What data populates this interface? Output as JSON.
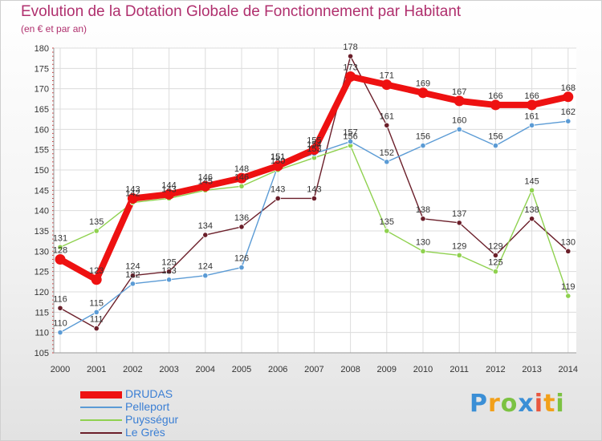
{
  "title": "Evolution de la Dotation Globale de Fonctionnement par Habitant",
  "subtitle": "(en € et par an)",
  "brand": {
    "letters": [
      {
        "char": "P",
        "color": "#3b8fd6"
      },
      {
        "char": "r",
        "color": "#f2a01a"
      },
      {
        "char": "o",
        "color": "#7cc242"
      },
      {
        "char": "x",
        "color": "#3b8fd6"
      },
      {
        "char": "i",
        "color": "#e9573f"
      },
      {
        "char": "t",
        "color": "#f2a01a"
      },
      {
        "char": "i",
        "color": "#7cc242"
      }
    ]
  },
  "chart_data": {
    "type": "line",
    "x": [
      "2000",
      "2001",
      "2002",
      "2003",
      "2004",
      "2005",
      "2006",
      "2007",
      "2008",
      "2009",
      "2010",
      "2011",
      "2012",
      "2013",
      "2014"
    ],
    "ylim": [
      105,
      180
    ],
    "yticks": [
      105,
      110,
      115,
      120,
      125,
      130,
      135,
      140,
      145,
      150,
      155,
      160,
      165,
      170,
      175,
      180
    ],
    "grid": true,
    "legend_position": "bottom-left",
    "series": [
      {
        "name": "Le Grès",
        "color": "#6b1f2a",
        "values": [
          116,
          111,
          124,
          125,
          134,
          136,
          143,
          143,
          178,
          161,
          138,
          137,
          129,
          138,
          130
        ],
        "labels": [
          "116",
          "111",
          "124",
          "125",
          "134",
          "136",
          "143",
          "143",
          "178",
          "161",
          "138",
          "137",
          "129",
          "138",
          "130"
        ]
      },
      {
        "name": "Puysségur",
        "color": "#8fd14f",
        "values": [
          131,
          135,
          142,
          143,
          145,
          146,
          150,
          153,
          156,
          135,
          130,
          129,
          125,
          145,
          119
        ],
        "labels": [
          "131",
          "135",
          "142",
          "143",
          "145",
          "146",
          "150",
          "153",
          "156",
          "135",
          "130",
          "129",
          "125",
          "145",
          "119"
        ]
      },
      {
        "name": "Pelleport",
        "color": "#5b9bd5",
        "values": [
          110,
          115,
          122,
          123,
          124,
          126,
          151,
          154,
          157,
          152,
          156,
          160,
          156,
          161,
          162
        ],
        "labels": [
          "110",
          "115",
          "122",
          "123",
          "124",
          "126",
          "151",
          "154",
          "157",
          "152",
          "156",
          "160",
          "156",
          "161",
          "162"
        ]
      },
      {
        "name": "DRUDAS",
        "color": "#ee1111",
        "values": [
          128,
          123,
          143,
          144,
          146,
          148,
          151,
          155,
          173,
          171,
          169,
          167,
          166,
          166,
          168
        ],
        "labels": [
          "128",
          "123",
          "143",
          "144",
          "146",
          "148",
          "151",
          "155",
          "173",
          "171",
          "169",
          "167",
          "166",
          "166",
          "168"
        ]
      }
    ]
  }
}
